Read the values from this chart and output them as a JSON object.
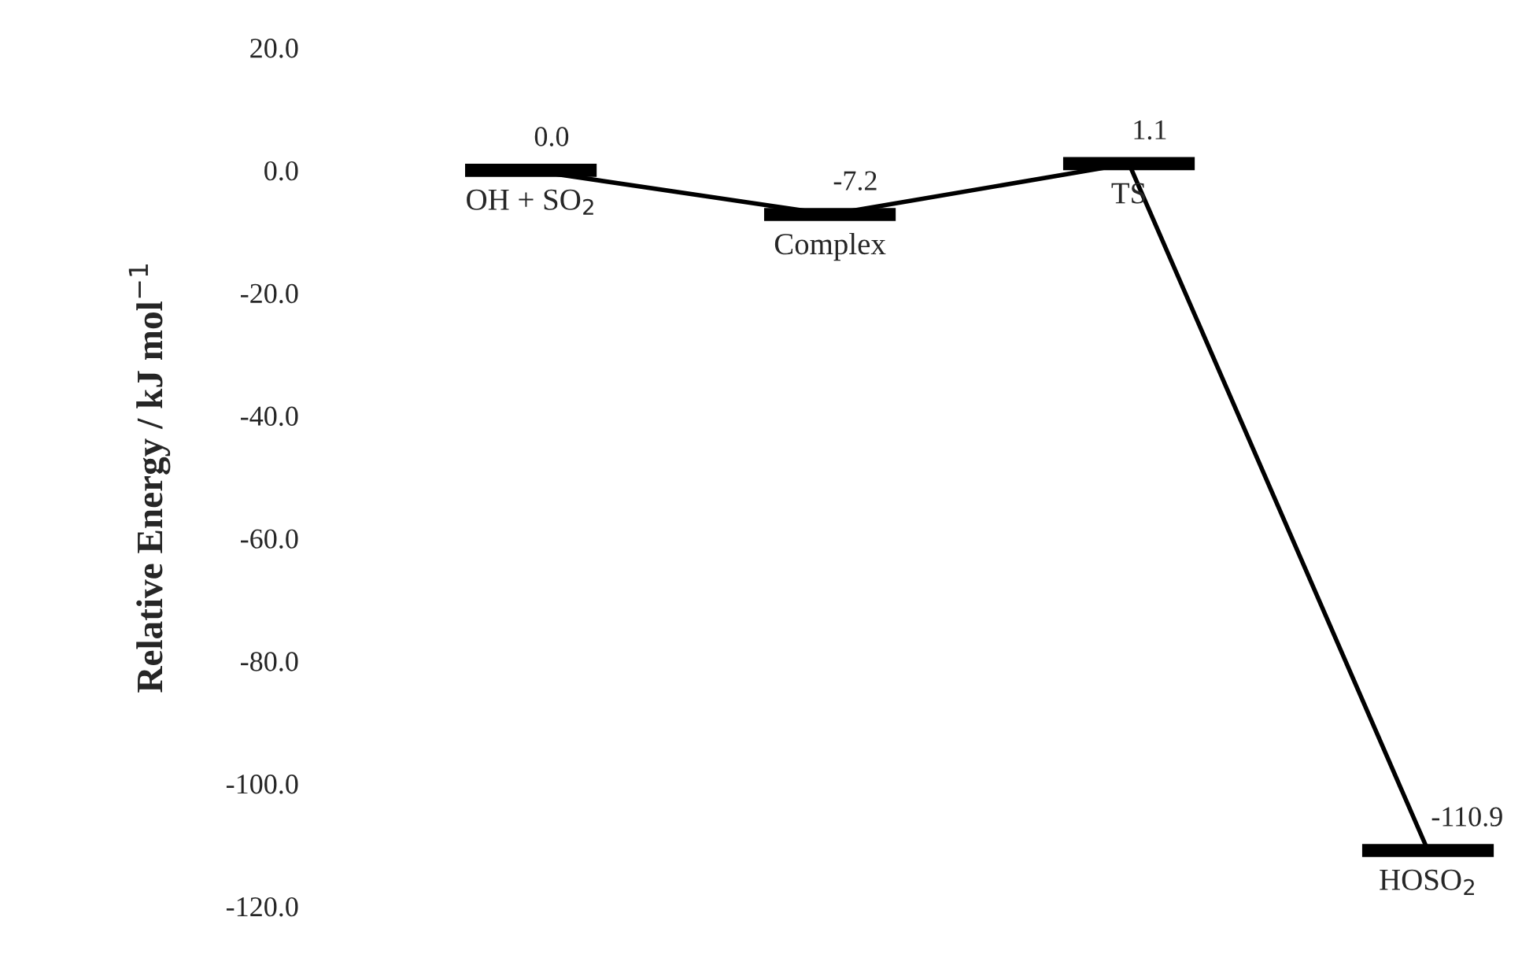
{
  "chart_data": {
    "type": "line",
    "categories": [
      "OH + SO$_{2}$",
      "Complex",
      "TS",
      "HOSO$_{2}$"
    ],
    "values": [
      0.0,
      -7.2,
      1.1,
      -110.9
    ],
    "color": "#000000",
    "value_labels": [
      "0.0",
      "-7.2",
      "1.1",
      "-110.9"
    ],
    "ylabel": "Relative Energy / kJ mol$^{−1}$",
    "ylim": [
      -120,
      20
    ],
    "yticks": [
      {
        "value": 20,
        "label": "20.0"
      },
      {
        "value": 0,
        "label": "0.0"
      },
      {
        "value": -20,
        "label": "-20.0"
      },
      {
        "value": -40,
        "label": "-40.0"
      },
      {
        "value": -60,
        "label": "-60.0"
      },
      {
        "value": -80,
        "label": "-80.0"
      },
      {
        "value": -100,
        "label": "-100.0"
      },
      {
        "value": -120,
        "label": "-120.0"
      }
    ],
    "tick_labels": "y",
    "grid": false,
    "legend": false
  }
}
